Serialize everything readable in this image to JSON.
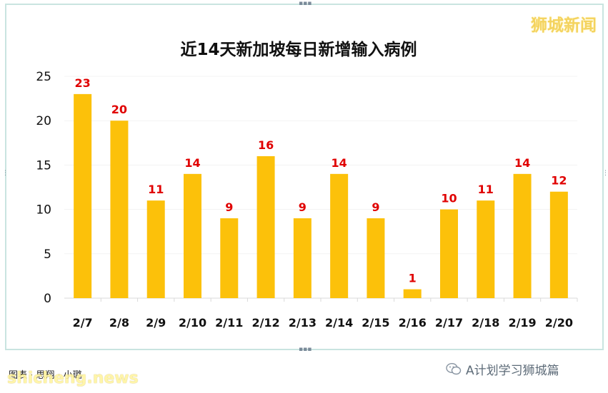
{
  "watermark": "狮城新闻",
  "footer": {
    "credit": "图表 · 思翔 · 小璐",
    "site": "shicheng.news",
    "wechat_label": "A计划学习狮城篇",
    "wechat_icon": "wechat-icon"
  },
  "colors": {
    "bar": "#fcc10a",
    "label": "#e00000",
    "border": "#c9e4e0",
    "grid": "#f3f3f3"
  },
  "chart_data": {
    "type": "bar",
    "title": "近14天新加坡每日新增输入病例",
    "categories": [
      "2/7",
      "2/8",
      "2/9",
      "2/10",
      "2/11",
      "2/12",
      "2/13",
      "2/14",
      "2/15",
      "2/16",
      "2/17",
      "2/18",
      "2/19",
      "2/20"
    ],
    "values": [
      23,
      20,
      11,
      14,
      9,
      16,
      9,
      14,
      9,
      1,
      10,
      11,
      14,
      12
    ],
    "ylim": [
      0,
      25
    ],
    "yticks": [
      0,
      5,
      10,
      15,
      20,
      25
    ],
    "grid": true,
    "data_labels": true,
    "xlabel": "",
    "ylabel": ""
  }
}
